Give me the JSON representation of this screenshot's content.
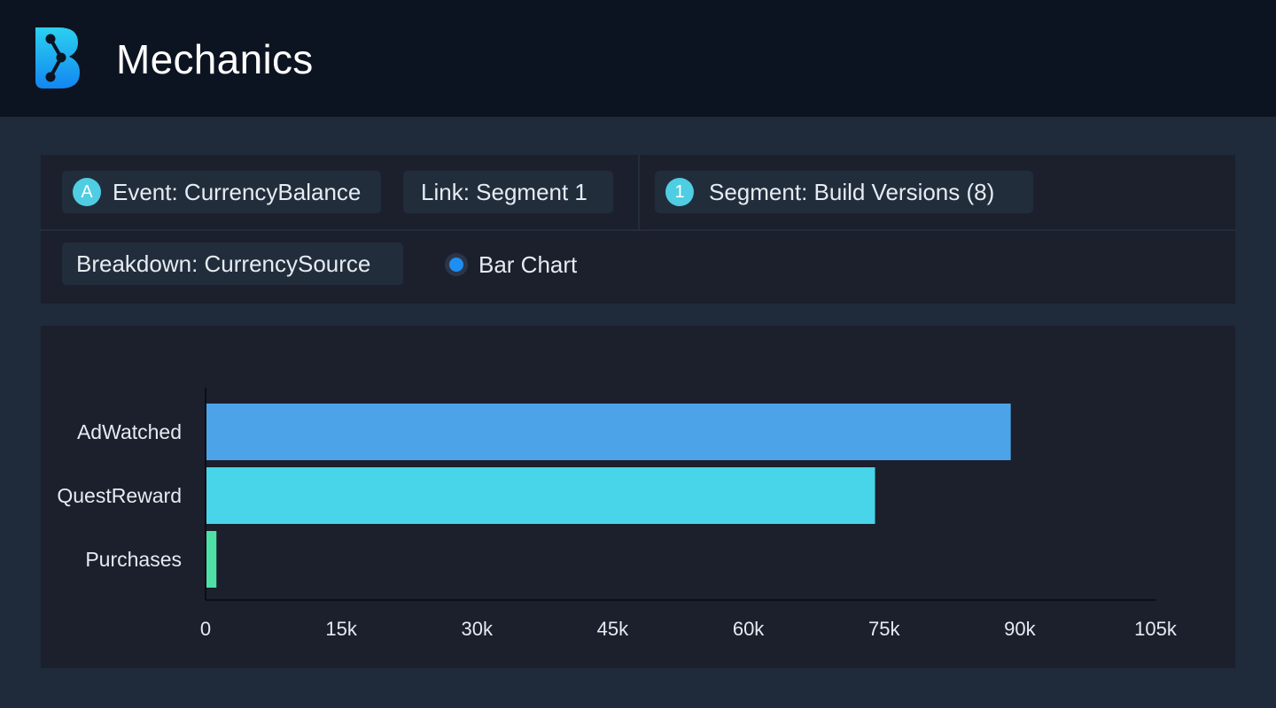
{
  "header": {
    "title": "Mechanics",
    "logo_icon": "logo-icon"
  },
  "query": {
    "event_badge": "A",
    "event_label": "Event: CurrencyBalance",
    "link_label": "Link: Segment 1",
    "segment_badge": "1",
    "segment_label": "Segment: Build Versions (8)",
    "breakdown_label": "Breakdown: CurrencySource",
    "chart_type_option": "Bar Chart",
    "chart_type_selected": true
  },
  "colors": {
    "accent": "#1e8ef2",
    "badge": "#4fcde2"
  },
  "chart_data": {
    "type": "bar",
    "orientation": "horizontal",
    "categories": [
      "AdWatched",
      "QuestReward",
      "Purchases"
    ],
    "values": [
      89000,
      74000,
      1200
    ],
    "colors": [
      "#4ca3e8",
      "#49d5e9",
      "#4fe0a6"
    ],
    "xlim": [
      0,
      105000
    ],
    "x_ticks": [
      0,
      15000,
      30000,
      45000,
      60000,
      75000,
      90000,
      105000
    ],
    "x_tick_labels": [
      "0",
      "15k",
      "30k",
      "45k",
      "60k",
      "75k",
      "90k",
      "105k"
    ],
    "grid": false,
    "legend": false
  }
}
